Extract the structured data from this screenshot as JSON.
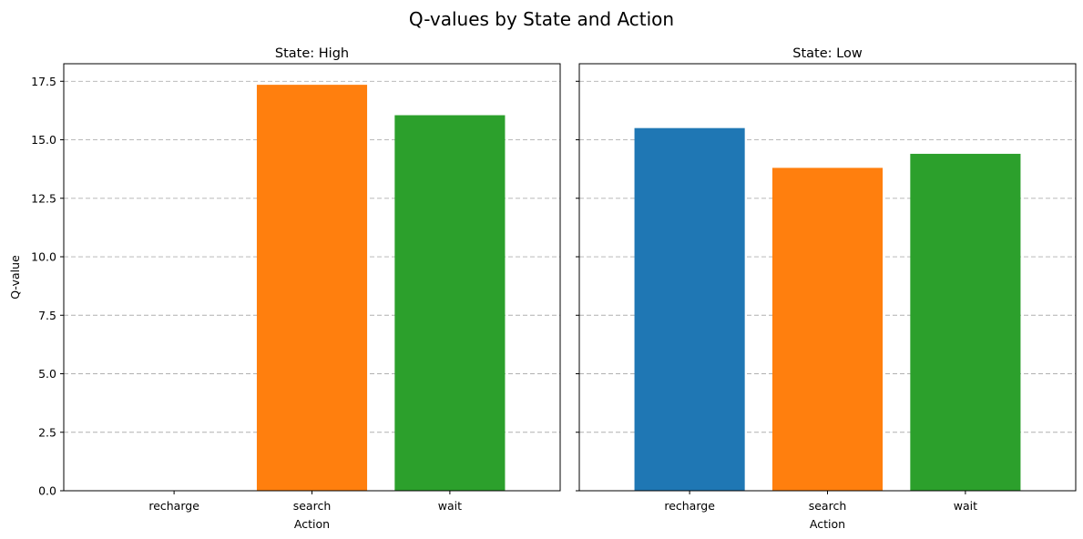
{
  "figure": {
    "title": "Q-values by State and Action"
  },
  "chart_data": [
    {
      "type": "bar",
      "title": "State: High",
      "categories": [
        "recharge",
        "search",
        "wait"
      ],
      "values": [
        0,
        17.35,
        16.05
      ],
      "colors": [
        "#1f77b4",
        "#ff7f0e",
        "#2ca02c"
      ],
      "xlabel": "Action",
      "ylabel": "Q-value",
      "ylim": [
        0,
        18.25
      ],
      "yticks": [
        "0.0",
        "2.5",
        "5.0",
        "7.5",
        "10.0",
        "12.5",
        "15.0",
        "17.5"
      ],
      "grid": "y-dashed"
    },
    {
      "type": "bar",
      "title": "State: Low",
      "categories": [
        "recharge",
        "search",
        "wait"
      ],
      "values": [
        15.5,
        13.8,
        14.4
      ],
      "colors": [
        "#1f77b4",
        "#ff7f0e",
        "#2ca02c"
      ],
      "xlabel": "Action",
      "ylabel": "",
      "ylim": [
        0,
        18.25
      ],
      "yticks": [
        "0.0",
        "2.5",
        "5.0",
        "7.5",
        "10.0",
        "12.5",
        "15.0",
        "17.5"
      ],
      "grid": "y-dashed"
    }
  ]
}
